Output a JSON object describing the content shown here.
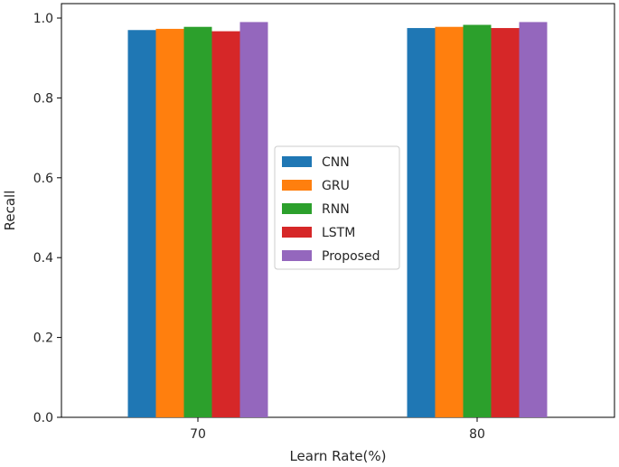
{
  "chart_data": {
    "type": "bar",
    "xlabel": "Learn Rate(%)",
    "ylabel": "Recall",
    "categories": [
      "70",
      "80"
    ],
    "ylim": [
      0,
      1.0
    ],
    "yticks": [
      "0.0",
      "0.2",
      "0.4",
      "0.6",
      "0.8",
      "1.0"
    ],
    "grid": false,
    "legend_position": "center",
    "series": [
      {
        "name": "CNN",
        "color": "#1f77b4",
        "values": [
          0.97,
          0.975
        ]
      },
      {
        "name": "GRU",
        "color": "#ff7f0e",
        "values": [
          0.973,
          0.978
        ]
      },
      {
        "name": "RNN",
        "color": "#2ca02c",
        "values": [
          0.978,
          0.983
        ]
      },
      {
        "name": "LSTM",
        "color": "#d62728",
        "values": [
          0.967,
          0.975
        ]
      },
      {
        "name": "Proposed",
        "color": "#9467bd",
        "values": [
          0.99,
          0.99
        ]
      }
    ]
  }
}
